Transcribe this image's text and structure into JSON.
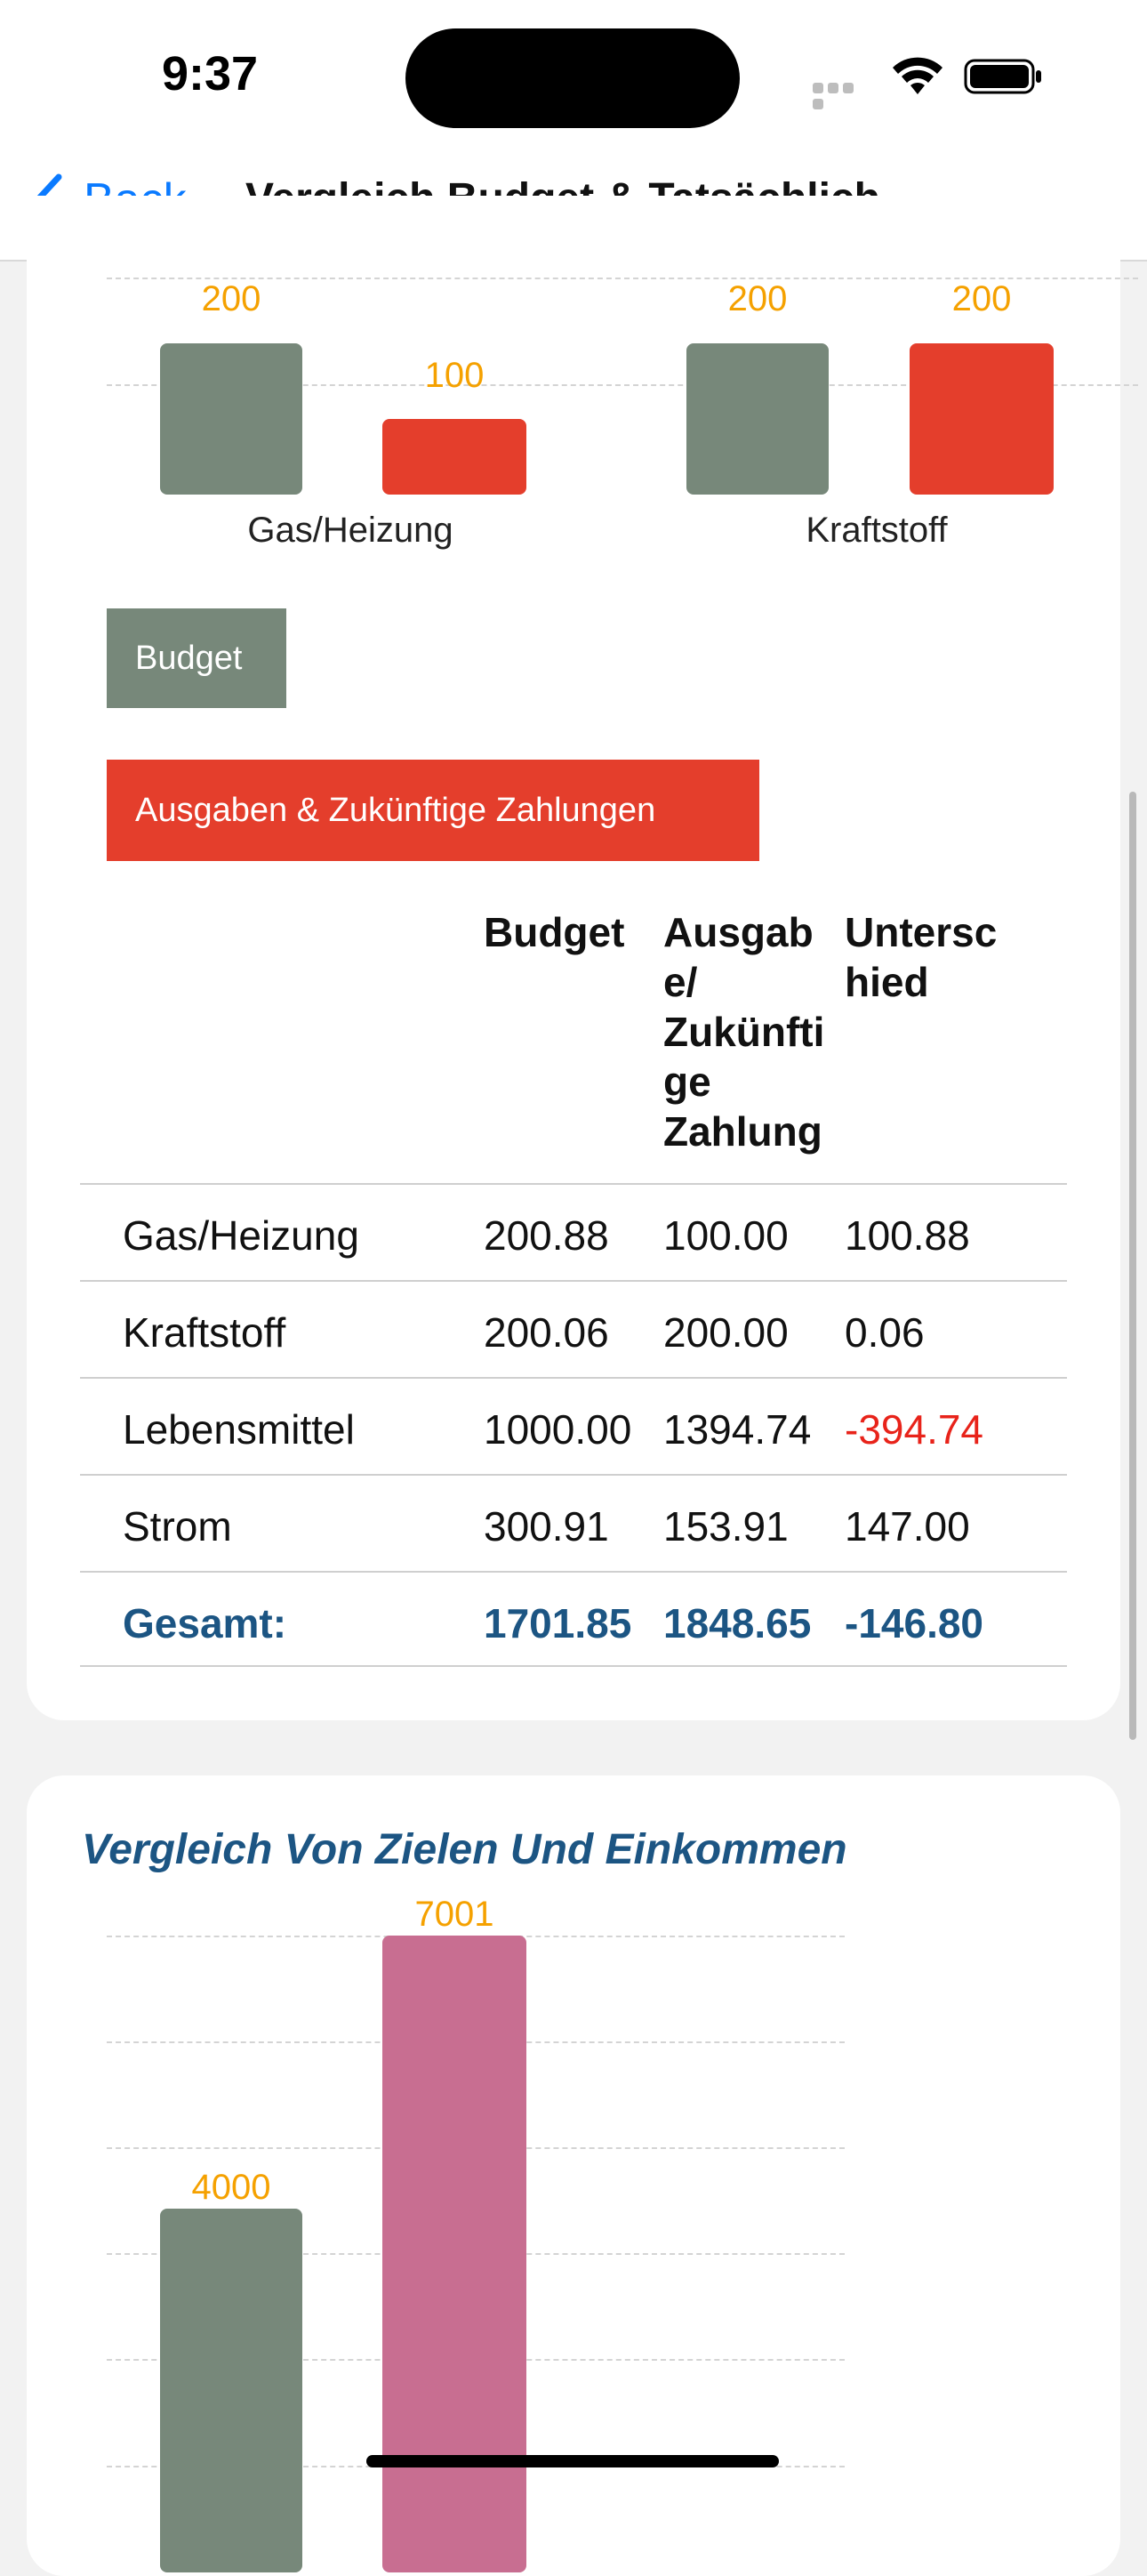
{
  "status_bar": {
    "time": "9:37"
  },
  "nav": {
    "back_label": "Back",
    "title": "Vergleich Budget & Tatsächlich"
  },
  "chart_data": [
    {
      "type": "bar",
      "title": "",
      "categories": [
        "Gas/Heizung",
        "Kraftstoff"
      ],
      "series": [
        {
          "name": "Budget",
          "values": [
            200,
            200
          ],
          "color": "#77887a"
        },
        {
          "name": "Ausgaben & Zukünftige Zahlungen",
          "values": [
            100,
            200
          ],
          "color": "#e43e2c"
        }
      ],
      "data_labels": [
        "200",
        "100",
        "200",
        "200"
      ],
      "grid": true
    },
    {
      "type": "bar",
      "title": "Vergleich Von Zielen Und Einkommen",
      "categories": [
        ""
      ],
      "series": [
        {
          "values": [
            4000
          ],
          "color": "#77887a"
        },
        {
          "values": [
            7001
          ],
          "color": "#c86e91"
        }
      ],
      "data_labels": [
        "4000",
        "7001"
      ],
      "grid": true
    }
  ],
  "legend": {
    "budget_label": "Budget",
    "actual_label": "Ausgaben & Zukünftige Zahlungen"
  },
  "table": {
    "headers": [
      "",
      "Budget",
      "Ausgabe/ Zukünftige Zahlung",
      "Unterschied"
    ],
    "header_lines": {
      "budget": [
        "Budget"
      ],
      "actual": [
        "Ausgab",
        "e/",
        "Zukünfti",
        "ge",
        "Zahlung"
      ],
      "diff": [
        "Untersc",
        "hied"
      ]
    },
    "rows": [
      {
        "name": "Gas/Heizung",
        "budget": "200.88",
        "actual": "100.00",
        "diff": "100.88"
      },
      {
        "name": "Kraftstoff",
        "budget": "200.06",
        "actual": "200.00",
        "diff": "0.06"
      },
      {
        "name": "Lebensmittel",
        "budget": "1000.00",
        "actual": "1394.74",
        "diff": "-394.74"
      },
      {
        "name": "Strom",
        "budget": "300.91",
        "actual": "153.91",
        "diff": "147.00"
      }
    ],
    "total": {
      "name": "Gesamt:",
      "budget": "1701.85",
      "actual": "1848.65",
      "diff": "-146.80"
    }
  },
  "colors": {
    "budget": "#77887a",
    "actual": "#e43e2c",
    "income": "#c86e91",
    "label": "#f5a100",
    "accent": "#1c5583",
    "link": "#0a7aff",
    "negative": "#e8231a"
  }
}
